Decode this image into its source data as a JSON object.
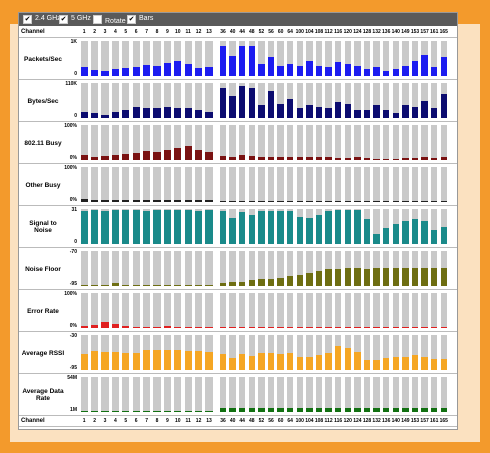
{
  "toolbar": [
    {
      "label": "2.4 GHz",
      "checked": true
    },
    {
      "label": "5 GHz",
      "checked": true
    },
    {
      "label": "Rotate",
      "checked": false
    },
    {
      "label": "Bars",
      "checked": true
    }
  ],
  "channel_header": "Channel",
  "bands": [
    {
      "channels": [
        1,
        2,
        3,
        4,
        5,
        6,
        7,
        8,
        9,
        10,
        11,
        12,
        13
      ]
    },
    {
      "channels": [
        36,
        40,
        44,
        48,
        52,
        56,
        60,
        64,
        100,
        104,
        108,
        112,
        116,
        120,
        124,
        128,
        132,
        136,
        140,
        149,
        153,
        157,
        161,
        165
      ]
    }
  ],
  "rows": [
    {
      "label": "Packets/Sec",
      "max": {
        "value": 1000,
        "label": "1K"
      },
      "min": 0,
      "color": "#1c1cf0",
      "values": [
        [
          250,
          180,
          130,
          200,
          230,
          260,
          320,
          300,
          380,
          420,
          330,
          230,
          250
        ],
        [
          870,
          570,
          870,
          870,
          330,
          540,
          300,
          330,
          300,
          420,
          300,
          270,
          410,
          330,
          300,
          210,
          250,
          150,
          200,
          300,
          420,
          600,
          270,
          530
        ]
      ]
    },
    {
      "label": "Bytes/Sec",
      "max": {
        "value": 110000,
        "label": "110K"
      },
      "min": 0,
      "color": "#0c0c70",
      "values": [
        [
          20000,
          15000,
          10000,
          18000,
          25000,
          35000,
          30000,
          30000,
          35000,
          33000,
          30000,
          25000,
          20000
        ],
        [
          95000,
          70000,
          100000,
          95000,
          40000,
          85000,
          45000,
          60000,
          30000,
          40000,
          35000,
          30000,
          50000,
          45000,
          25000,
          25000,
          40000,
          25000,
          15000,
          40000,
          35000,
          55000,
          30000,
          75000
        ]
      ]
    },
    {
      "label": "802.11 Busy",
      "max": {
        "value": 100,
        "label": "100%"
      },
      "min": {
        "value": 0,
        "label": "0%"
      },
      "color": "#7a1212",
      "values": [
        [
          15,
          10,
          12,
          15,
          18,
          20,
          25,
          22,
          30,
          35,
          40,
          28,
          22
        ],
        [
          12,
          10,
          14,
          12,
          10,
          10,
          8,
          8,
          8,
          8,
          8,
          8,
          6,
          6,
          8,
          6,
          4,
          4,
          4,
          6,
          6,
          8,
          6,
          10
        ]
      ]
    },
    {
      "label": "Other Busy",
      "max": {
        "value": 100,
        "label": "100%"
      },
      "min": {
        "value": 0,
        "label": "0%"
      },
      "color": "#222222",
      "values": [
        [
          8,
          6,
          6,
          6,
          6,
          6,
          6,
          6,
          6,
          6,
          6,
          6,
          6
        ],
        [
          4,
          4,
          4,
          4,
          4,
          4,
          4,
          4,
          4,
          4,
          4,
          4,
          4,
          4,
          4,
          4,
          4,
          4,
          4,
          4,
          4,
          4,
          4,
          4
        ]
      ]
    },
    {
      "label": "Signal to Noise",
      "max": 31,
      "min": 0,
      "color": "#1a8a8a",
      "values": [
        [
          29,
          30,
          29,
          30,
          30,
          30,
          29,
          30,
          30,
          30,
          30,
          29,
          30
        ],
        [
          29,
          23,
          28,
          26,
          29,
          29,
          29,
          29,
          24,
          23,
          26,
          29,
          30,
          30,
          30,
          22,
          9,
          14,
          18,
          20,
          22,
          20,
          12,
          15
        ]
      ]
    },
    {
      "label": "Noise Floor",
      "max": -70,
      "min": -95,
      "color": "#6e6e12",
      "values": [
        [
          -94,
          -94,
          -94,
          -93,
          -94,
          -94,
          -94,
          -94,
          -94,
          -94,
          -94,
          -94,
          -94
        ],
        [
          -93,
          -92,
          -92,
          -91,
          -90,
          -90,
          -89,
          -88,
          -87,
          -86,
          -84,
          -83,
          -83,
          -82,
          -82,
          -83,
          -82,
          -82,
          -82,
          -82,
          -82,
          -82,
          -82,
          -82
        ]
      ]
    },
    {
      "label": "Error Rate",
      "max": {
        "value": 100,
        "label": "100%"
      },
      "min": {
        "value": 0,
        "label": "0%"
      },
      "color": "#e02020",
      "values": [
        [
          6,
          8,
          18,
          12,
          6,
          4,
          3,
          4,
          5,
          3,
          4,
          4,
          3
        ],
        [
          3,
          2,
          2,
          2,
          2,
          2,
          4,
          2,
          2,
          2,
          2,
          2,
          4,
          2,
          2,
          2,
          1,
          1,
          1,
          2,
          2,
          2,
          2,
          2
        ]
      ]
    },
    {
      "label": "Average RSSI",
      "max": -30,
      "min": -95,
      "color": "#f5a623",
      "values": [
        [
          -65,
          -60,
          -62,
          -62,
          -63,
          -64,
          -57,
          -57,
          -58,
          -57,
          -59,
          -60,
          -62
        ],
        [
          -65,
          -72,
          -66,
          -69,
          -64,
          -64,
          -65,
          -64,
          -70,
          -70,
          -67,
          -64,
          -50,
          -55,
          -62,
          -76,
          -77,
          -73,
          -71,
          -71,
          -68,
          -70,
          -74,
          -74
        ]
      ]
    },
    {
      "label": "Average Data Rate",
      "max": {
        "value": 54,
        "label": "54M"
      },
      "min": {
        "value": 1,
        "label": "1M"
      },
      "color": "#127012",
      "values": [
        [
          2,
          2,
          2,
          2,
          2,
          2,
          2,
          2,
          2,
          2,
          2,
          2,
          2
        ],
        [
          7,
          7,
          7,
          7,
          7,
          7,
          7,
          7,
          7,
          7,
          7,
          7,
          7,
          7,
          7,
          7,
          7,
          7,
          7,
          7,
          7,
          7,
          7,
          7
        ]
      ]
    }
  ]
}
